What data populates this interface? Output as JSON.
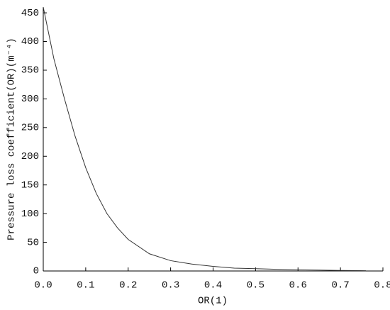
{
  "chart_data": {
    "type": "line",
    "x_label": "OR(1)",
    "y_label": "Pressure loss coefficient(OR)(m⁻⁴)",
    "series": [
      {
        "color": "#333333",
        "x": [
          0,
          0.025,
          0.05,
          0.075,
          0.1,
          0.125,
          0.15,
          0.175,
          0.2,
          0.25,
          0.3,
          0.35,
          0.4,
          0.45,
          0.5,
          0.55,
          0.6,
          0.65,
          0.7,
          0.76
        ],
        "values": [
          460,
          370,
          300,
          235,
          180,
          135,
          100,
          75,
          55,
          30,
          18,
          12,
          8,
          5,
          4,
          3,
          2,
          1.5,
          1,
          0.5
        ]
      }
    ],
    "xlim": [
      0,
      0.8
    ],
    "xticks": [
      {
        "value": 0,
        "label": "0.0"
      },
      0.1,
      0.2,
      0.3,
      0.4,
      0.5,
      0.6,
      0.7,
      0.8
    ],
    "ylim": [
      0,
      460
    ],
    "yticks": [
      0,
      50,
      100,
      150,
      200,
      250,
      300,
      350,
      400,
      450
    ]
  }
}
